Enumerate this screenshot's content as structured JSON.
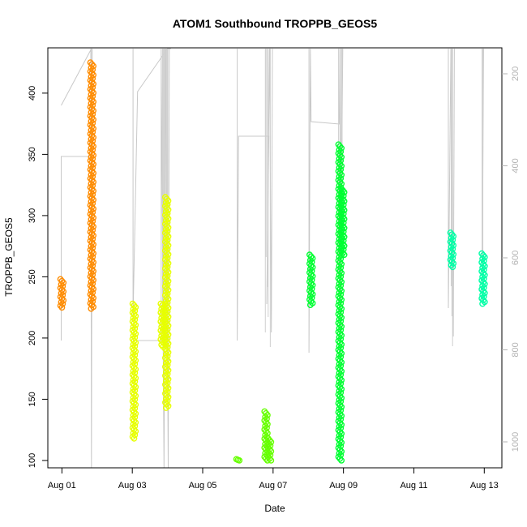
{
  "chart_data": {
    "type": "scatter",
    "title": "ATOM1 Southbound TROPPB_GEOS5",
    "xlabel": "Date",
    "ylabel": "TROPPB_GEOS5",
    "x_ticks": [
      "Aug 01",
      "Aug 03",
      "Aug 05",
      "Aug 07",
      "Aug 09",
      "Aug 11",
      "Aug 13"
    ],
    "y_ticks": [
      100,
      150,
      200,
      250,
      300,
      350,
      400
    ],
    "y2_ticks": [
      200,
      400,
      600,
      800,
      1000
    ],
    "xlim_days": [
      0.6,
      13.5
    ],
    "ylim": [
      94,
      437
    ],
    "y2_reversed": true,
    "y2_color": "#b3b3b3",
    "grid": false,
    "clusters": [
      {
        "day": 1.0,
        "y_min": 225,
        "y_max": 248,
        "color": "#ff8c00"
      },
      {
        "day": 1.85,
        "y_min": 224,
        "y_max": 425,
        "color": "#ff8c00"
      },
      {
        "day": 3.05,
        "y_min": 118,
        "y_max": 228,
        "color": "#e7ff00"
      },
      {
        "day": 3.85,
        "y_min": 193,
        "y_max": 228,
        "color": "#e7ff00"
      },
      {
        "day": 3.98,
        "y_min": 143,
        "y_max": 315,
        "color": "#e7ff00"
      },
      {
        "day": 6.0,
        "y_min": 100,
        "y_max": 101,
        "color": "#66ff00"
      },
      {
        "day": 6.8,
        "y_min": 100,
        "y_max": 140,
        "color": "#66ff00"
      },
      {
        "day": 6.9,
        "y_min": 100,
        "y_max": 118,
        "color": "#66ff00"
      },
      {
        "day": 8.08,
        "y_min": 227,
        "y_max": 268,
        "color": "#00ff33"
      },
      {
        "day": 8.9,
        "y_min": 100,
        "y_max": 358,
        "color": "#00ff33"
      },
      {
        "day": 8.98,
        "y_min": 268,
        "y_max": 322,
        "color": "#00ff33"
      },
      {
        "day": 12.08,
        "y_min": 258,
        "y_max": 286,
        "color": "#00ffa6"
      },
      {
        "day": 12.97,
        "y_min": 228,
        "y_max": 269,
        "color": "#00ffa6"
      }
    ]
  }
}
